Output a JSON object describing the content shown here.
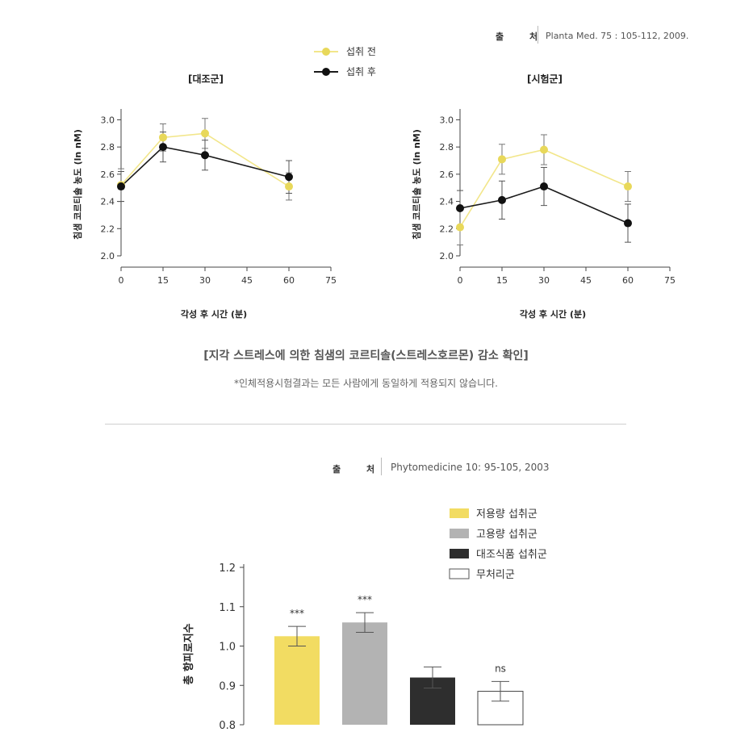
{
  "top_source": {
    "label": "출 처",
    "text": "Planta Med. 75 : 105-112, 2009."
  },
  "top_legend": [
    {
      "label": "섭취 전",
      "color": "#f2e68a",
      "marker": "#e8d85a"
    },
    {
      "label": "섭취 후",
      "color": "#1a1a1a",
      "marker": "#111111"
    }
  ],
  "caption": "[지각 스트레스에 의한 침샘의 코르티솔(스트레스호르몬) 감소 확인]",
  "note": "*인체적용시험결과는 모든 사람에게 동일하게 적용되지 않습니다.",
  "bottom_source": {
    "label": "출 처",
    "text": "Phytomedicine 10: 95-105, 2003"
  },
  "chart_data": [
    {
      "type": "line",
      "title": "[대조군]",
      "xlabel": "각성 후 시간 (분)",
      "ylabel": "침샘 코르티솔 농도 (ln nM)",
      "x_ticks": [
        0,
        15,
        30,
        45,
        60,
        75
      ],
      "y_ticks": [
        "2.0",
        "2.2",
        "2.4",
        "2.6",
        "2.8",
        "3.0"
      ],
      "xlim": [
        0,
        75
      ],
      "ylim": [
        2.0,
        3.05
      ],
      "series": [
        {
          "name": "섭취 전",
          "color": "#f2e68a",
          "marker": "#e8d85a",
          "x": [
            0,
            15,
            30,
            60
          ],
          "y": [
            2.52,
            2.87,
            2.9,
            2.51
          ],
          "err": [
            0.12,
            0.1,
            0.11,
            0.1
          ]
        },
        {
          "name": "섭취 후",
          "color": "#1a1a1a",
          "marker": "#111111",
          "x": [
            0,
            15,
            30,
            60
          ],
          "y": [
            2.51,
            2.8,
            2.74,
            2.58
          ],
          "err": [
            0.11,
            0.11,
            0.11,
            0.12
          ]
        }
      ]
    },
    {
      "type": "line",
      "title": "[시험군]",
      "xlabel": "각성 후 시간 (분)",
      "ylabel": "침샘 코르티솔 농도 (ln nM)",
      "x_ticks": [
        0,
        15,
        30,
        45,
        60,
        75
      ],
      "y_ticks": [
        "2.0",
        "2.2",
        "2.4",
        "2.6",
        "2.8",
        "3.0"
      ],
      "xlim": [
        0,
        75
      ],
      "ylim": [
        2.0,
        3.05
      ],
      "series": [
        {
          "name": "섭취 전",
          "color": "#f2e68a",
          "marker": "#e8d85a",
          "x": [
            0,
            15,
            30,
            60
          ],
          "y": [
            2.21,
            2.71,
            2.78,
            2.51
          ],
          "err": [
            0.13,
            0.11,
            0.11,
            0.11
          ]
        },
        {
          "name": "섭취 후",
          "color": "#1a1a1a",
          "marker": "#111111",
          "x": [
            0,
            15,
            30,
            60
          ],
          "y": [
            2.35,
            2.41,
            2.51,
            2.24
          ],
          "err": [
            0.13,
            0.14,
            0.14,
            0.14
          ]
        }
      ]
    },
    {
      "type": "bar",
      "ylabel": "총 항피로지수",
      "y_ticks": [
        "0.8",
        "0.9",
        "1.0",
        "1.1",
        "1.2"
      ],
      "ylim": [
        0.8,
        1.2
      ],
      "legend": [
        {
          "label": "저용량 섭취군",
          "color": "#f2dc62"
        },
        {
          "label": "고용량 섭취군",
          "color": "#b3b3b3"
        },
        {
          "label": "대조식품 섭취군",
          "color": "#2e2e2e"
        },
        {
          "label": "무처리군",
          "color": "#ffffff"
        }
      ],
      "categories": [
        "저용량 섭취군",
        "고용량 섭취군",
        "대조식품 섭취군",
        "무처리군"
      ],
      "values": [
        1.025,
        1.06,
        0.92,
        0.885
      ],
      "err": [
        0.025,
        0.025,
        0.027,
        0.025
      ],
      "annotations": [
        "***",
        "***",
        "",
        "ns"
      ]
    }
  ]
}
